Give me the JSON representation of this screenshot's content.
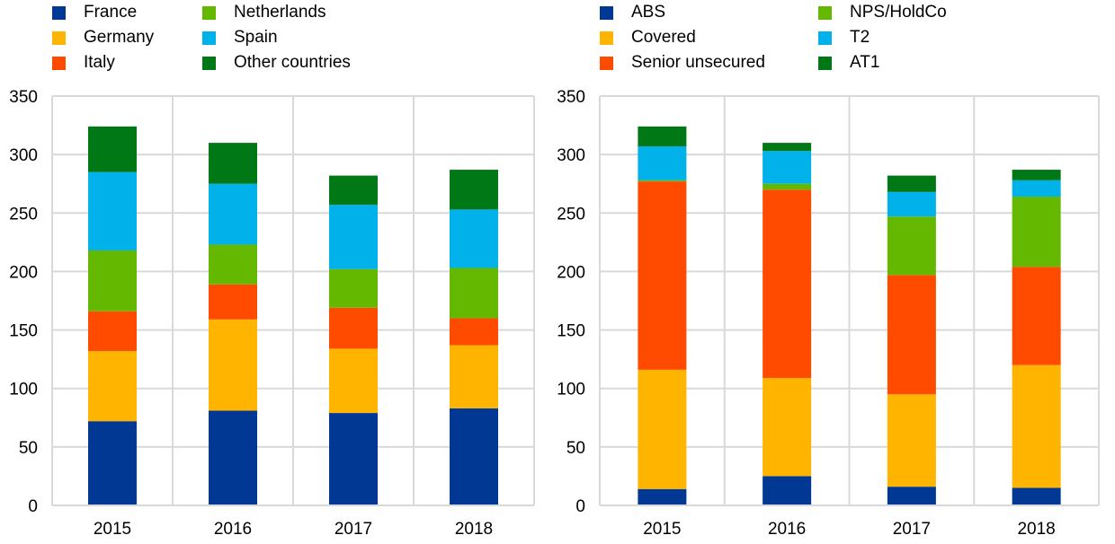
{
  "chart_data": [
    {
      "type": "bar",
      "stacked": true,
      "title": "",
      "xlabel": "",
      "ylabel": "",
      "ylim": [
        0,
        350
      ],
      "yticks": [
        0,
        50,
        100,
        150,
        200,
        250,
        300,
        350
      ],
      "grid": true,
      "legend_position": "top",
      "categories": [
        "2015",
        "2016",
        "2017",
        "2018"
      ],
      "series": [
        {
          "name": "France",
          "color": "#003894",
          "values": [
            72,
            81,
            79,
            83
          ]
        },
        {
          "name": "Germany",
          "color": "#ffb400",
          "values": [
            60,
            78,
            55,
            54
          ]
        },
        {
          "name": "Italy",
          "color": "#ff4b00",
          "values": [
            34,
            30,
            35,
            23
          ]
        },
        {
          "name": "Netherlands",
          "color": "#65b800",
          "values": [
            52,
            34,
            33,
            43
          ]
        },
        {
          "name": "Spain",
          "color": "#00b1ea",
          "values": [
            67,
            52,
            55,
            50
          ]
        },
        {
          "name": "Other countries",
          "color": "#007816",
          "values": [
            39,
            35,
            25,
            34
          ]
        }
      ]
    },
    {
      "type": "bar",
      "stacked": true,
      "title": "",
      "xlabel": "",
      "ylabel": "",
      "ylim": [
        0,
        350
      ],
      "yticks": [
        0,
        50,
        100,
        150,
        200,
        250,
        300,
        350
      ],
      "grid": true,
      "legend_position": "top",
      "categories": [
        "2015",
        "2016",
        "2017",
        "2018"
      ],
      "series": [
        {
          "name": "ABS",
          "color": "#003894",
          "values": [
            14,
            25,
            16,
            15
          ]
        },
        {
          "name": "Covered",
          "color": "#ffb400",
          "values": [
            102,
            84,
            79,
            105
          ]
        },
        {
          "name": "Senior unsecured",
          "color": "#ff4b00",
          "values": [
            161,
            161,
            102,
            84
          ]
        },
        {
          "name": "NPS/HoldCo",
          "color": "#65b800",
          "values": [
            1,
            5,
            50,
            60
          ]
        },
        {
          "name": "T2",
          "color": "#00b1ea",
          "values": [
            29,
            28,
            21,
            14
          ]
        },
        {
          "name": "AT1",
          "color": "#007816",
          "values": [
            17,
            7,
            14,
            9
          ]
        }
      ]
    }
  ]
}
